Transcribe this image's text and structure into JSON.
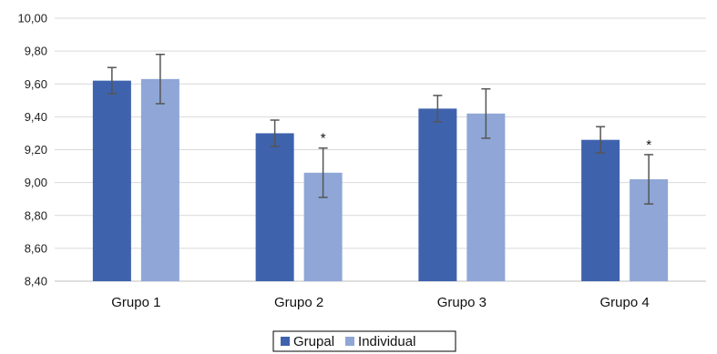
{
  "chart_data": {
    "type": "bar",
    "categories": [
      "Grupo 1",
      "Grupo 2",
      "Grupo 3",
      "Grupo 4"
    ],
    "series": [
      {
        "name": "Grupal",
        "color": "#3f62ad",
        "values": [
          9.62,
          9.3,
          9.45,
          9.26
        ],
        "error": [
          0.08,
          0.08,
          0.08,
          0.08
        ]
      },
      {
        "name": "Individual",
        "color": "#8fa6d6",
        "values": [
          9.63,
          9.06,
          9.42,
          9.02
        ],
        "error": [
          0.15,
          0.15,
          0.15,
          0.15
        ]
      }
    ],
    "annotations": [
      {
        "category": "Grupo 2",
        "series": "Individual",
        "text": "*"
      },
      {
        "category": "Grupo 4",
        "series": "Individual",
        "text": "*"
      }
    ],
    "ylim": [
      8.4,
      10.0
    ],
    "yticks": [
      8.4,
      8.6,
      8.8,
      9.0,
      9.2,
      9.4,
      9.6,
      9.8,
      10.0
    ],
    "ytick_labels": [
      "8,40",
      "8,60",
      "8,80",
      "9,00",
      "9,20",
      "9,40",
      "9,60",
      "9,80",
      "10,00"
    ],
    "grid": true,
    "legend_position": "bottom",
    "xlabel": "",
    "ylabel": "",
    "title": ""
  }
}
